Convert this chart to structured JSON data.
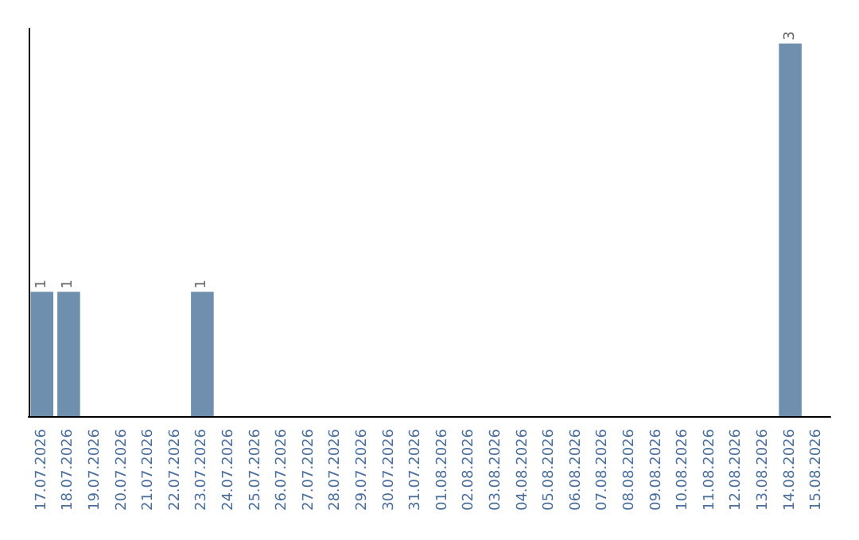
{
  "chart_data": {
    "type": "bar",
    "categories": [
      "17.07.2026",
      "18.07.2026",
      "19.07.2026",
      "20.07.2026",
      "21.07.2026",
      "22.07.2026",
      "23.07.2026",
      "24.07.2026",
      "25.07.2026",
      "26.07.2026",
      "27.07.2026",
      "28.07.2026",
      "29.07.2026",
      "30.07.2026",
      "31.07.2026",
      "01.08.2026",
      "02.08.2026",
      "03.08.2026",
      "04.08.2026",
      "05.08.2026",
      "06.08.2026",
      "07.08.2026",
      "08.08.2026",
      "09.08.2026",
      "10.08.2026",
      "11.08.2026",
      "12.08.2026",
      "13.08.2026",
      "14.08.2026",
      "15.08.2026"
    ],
    "values": [
      1,
      1,
      0,
      0,
      0,
      0,
      1,
      0,
      0,
      0,
      0,
      0,
      0,
      0,
      0,
      0,
      0,
      0,
      0,
      0,
      0,
      0,
      0,
      0,
      0,
      0,
      0,
      0,
      3,
      0
    ],
    "value_labels": [
      "1",
      "1",
      null,
      null,
      null,
      null,
      "1",
      null,
      null,
      null,
      null,
      null,
      null,
      null,
      null,
      null,
      null,
      null,
      null,
      null,
      null,
      null,
      null,
      null,
      null,
      null,
      null,
      null,
      "3",
      null
    ],
    "color": "#6f8fae",
    "grid": false,
    "tick_labels": "x"
  }
}
